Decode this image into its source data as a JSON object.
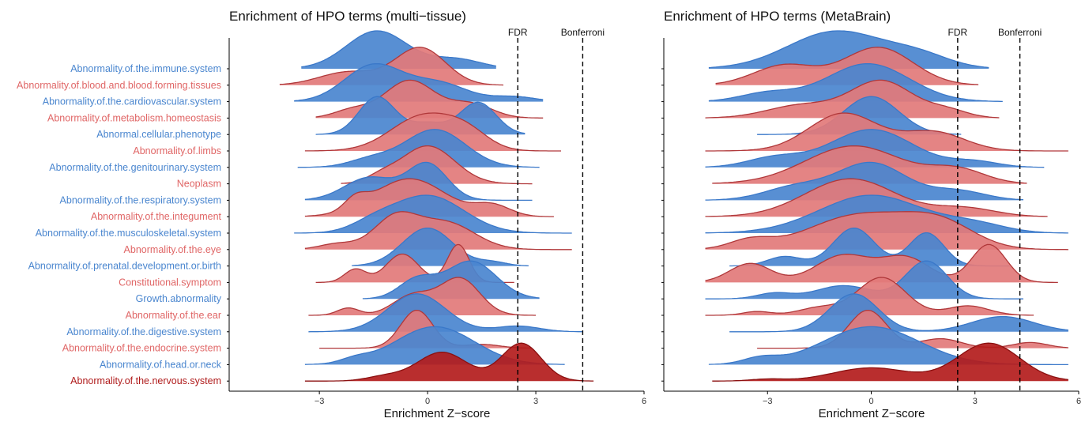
{
  "chart_data": [
    {
      "type": "ridgeline",
      "title": "Enrichment of HPO terms (multi−tissue)",
      "xlabel": "Enrichment Z−score",
      "xlim": [
        -5.5,
        6
      ],
      "xticks": [
        "−3",
        "0",
        "3",
        "6"
      ],
      "reference_lines": [
        {
          "label": "FDR",
          "x": 2.5
        },
        {
          "label": "Bonferroni",
          "x": 4.3
        }
      ],
      "series": [
        {
          "name": "Abnormality.of.the.immune.system",
          "group": "blue",
          "range": [
            -3.5,
            1.9
          ],
          "peaks": [
            [
              -1.4,
              1.0,
              0.85
            ],
            [
              0.8,
              0.25,
              0.7
            ]
          ]
        },
        {
          "name": "Abnormality.of.blood.and.blood.forming.tissues",
          "group": "red",
          "range": [
            -4.1,
            2.1
          ],
          "peaks": [
            [
              -0.2,
              0.85,
              0.7
            ],
            [
              -2.2,
              0.3,
              0.8
            ]
          ]
        },
        {
          "name": "Abnormality.of.the.cardiovascular.system",
          "group": "blue",
          "range": [
            -3.7,
            3.2
          ],
          "peaks": [
            [
              -1.5,
              0.9,
              0.8
            ],
            [
              0.3,
              0.45,
              0.8
            ],
            [
              2.4,
              0.12,
              0.6
            ]
          ]
        },
        {
          "name": "Abnormality.of.metabolism.homeostasis",
          "group": "red",
          "range": [
            -3.1,
            3.2
          ],
          "peaks": [
            [
              -0.5,
              0.95,
              0.7
            ],
            [
              1.2,
              0.35,
              0.6
            ],
            [
              -2.1,
              0.2,
              0.5
            ]
          ]
        },
        {
          "name": "Abnormal.cellular.phenotype",
          "group": "blue",
          "range": [
            -3.1,
            2.7
          ],
          "peaks": [
            [
              -1.4,
              1.0,
              0.5
            ],
            [
              1.4,
              0.85,
              0.5
            ],
            [
              0.0,
              0.3,
              0.5
            ]
          ]
        },
        {
          "name": "Abnormality.of.limbs",
          "group": "red",
          "range": [
            -3.4,
            3.7
          ],
          "peaks": [
            [
              -0.1,
              1.0,
              0.9
            ],
            [
              1.1,
              0.4,
              0.6
            ]
          ]
        },
        {
          "name": "Abnormality.of.the.genitourinary.system",
          "group": "blue",
          "range": [
            -3.6,
            3.1
          ],
          "peaks": [
            [
              0.2,
              1.0,
              0.85
            ],
            [
              -1.6,
              0.2,
              0.6
            ]
          ]
        },
        {
          "name": "Neoplasm",
          "group": "red",
          "range": [
            -2.4,
            2.9
          ],
          "peaks": [
            [
              0.0,
              1.0,
              0.75
            ],
            [
              -1.3,
              0.15,
              0.4
            ]
          ]
        },
        {
          "name": "Abnormality.of.the.respiratory.system",
          "group": "blue",
          "range": [
            -3.4,
            2.9
          ],
          "peaks": [
            [
              0.0,
              0.95,
              0.55
            ],
            [
              -1.6,
              0.6,
              0.7
            ]
          ]
        },
        {
          "name": "Abnormality.of.the.integument",
          "group": "red",
          "range": [
            -3.4,
            3.5
          ],
          "peaks": [
            [
              -0.5,
              0.7,
              1.0
            ],
            [
              -2.0,
              0.2,
              0.3
            ],
            [
              1.8,
              0.2,
              0.5
            ]
          ]
        },
        {
          "name": "Abnormality.of.the.musculoskeletal.system",
          "group": "blue",
          "range": [
            -3.7,
            4.0
          ],
          "peaks": [
            [
              0.0,
              0.95,
              1.0
            ],
            [
              -1.5,
              0.2,
              0.6
            ]
          ]
        },
        {
          "name": "Abnormality.of.the.eye",
          "group": "red",
          "range": [
            -3.4,
            4.0
          ],
          "peaks": [
            [
              -0.9,
              0.8,
              0.6
            ],
            [
              0.5,
              0.7,
              0.8
            ],
            [
              -2.5,
              0.15,
              0.5
            ]
          ]
        },
        {
          "name": "Abnormality.of.prenatal.development.or.birth",
          "group": "blue",
          "range": [
            -2.1,
            2.8
          ],
          "peaks": [
            [
              0.0,
              1.0,
              0.7
            ],
            [
              1.8,
              0.1,
              0.4
            ]
          ]
        },
        {
          "name": "Constitutional.symptom",
          "group": "red",
          "range": [
            -3.1,
            2.4
          ],
          "peaks": [
            [
              0.85,
              1.0,
              0.3
            ],
            [
              -0.7,
              0.75,
              0.45
            ],
            [
              -2.0,
              0.35,
              0.3
            ]
          ]
        },
        {
          "name": "Growth.abnormality",
          "group": "blue",
          "range": [
            -1.8,
            3.1
          ],
          "peaks": [
            [
              1.2,
              1.0,
              0.7
            ],
            [
              -0.3,
              0.5,
              0.5
            ]
          ]
        },
        {
          "name": "Abnormality.of.the.ear",
          "group": "red",
          "range": [
            -3.3,
            3.0
          ],
          "peaks": [
            [
              0.9,
              1.0,
              0.55
            ],
            [
              -0.4,
              0.55,
              0.55
            ],
            [
              -2.2,
              0.2,
              0.3
            ]
          ]
        },
        {
          "name": "Abnormality.of.the.digestive.system",
          "group": "blue",
          "range": [
            -3.3,
            4.3
          ],
          "peaks": [
            [
              -0.3,
              1.0,
              0.8
            ],
            [
              2.5,
              0.15,
              0.6
            ]
          ]
        },
        {
          "name": "Abnormality.of.the.endocrine.system",
          "group": "red",
          "range": [
            -3.0,
            2.9
          ],
          "peaks": [
            [
              -0.3,
              1.0,
              0.45
            ],
            [
              1.5,
              0.1,
              0.5
            ]
          ]
        },
        {
          "name": "Abnormality.of.head.or.neck",
          "group": "blue",
          "range": [
            -3.4,
            3.8
          ],
          "peaks": [
            [
              0.2,
              0.9,
              1.1
            ],
            [
              -2.0,
              0.1,
              0.4
            ]
          ]
        },
        {
          "name": "Abnormality.of.the.nervous.system",
          "group": "darkred",
          "range": [
            -3.4,
            4.6
          ],
          "peaks": [
            [
              0.4,
              0.65,
              0.7
            ],
            [
              2.6,
              0.85,
              0.55
            ],
            [
              -1.2,
              0.1,
              0.5
            ]
          ]
        }
      ]
    },
    {
      "type": "ridgeline",
      "title": "Enrichment of HPO terms (MetaBrain)",
      "xlabel": "Enrichment Z−score",
      "xlim": [
        -6,
        6
      ],
      "xticks": [
        "−3",
        "0",
        "3",
        "6"
      ],
      "reference_lines": [
        {
          "label": "FDR",
          "x": 2.5
        },
        {
          "label": "Bonferroni",
          "x": 4.3
        }
      ],
      "series": [
        {
          "name": "Abnormality.of.the.immune.system",
          "group": "blue",
          "range": [
            -4.7,
            3.4
          ],
          "peaks": [
            [
              -1.0,
              1.0,
              1.4
            ],
            [
              1.4,
              0.3,
              0.9
            ]
          ]
        },
        {
          "name": "Abnormality.of.blood.and.blood.forming.tissues",
          "group": "red",
          "range": [
            -4.5,
            3.1
          ],
          "peaks": [
            [
              0.2,
              0.85,
              1.0
            ],
            [
              -2.5,
              0.45,
              0.9
            ]
          ]
        },
        {
          "name": "Abnormality.of.the.cardiovascular.system",
          "group": "blue",
          "range": [
            -4.7,
            3.8
          ],
          "peaks": [
            [
              -0.1,
              0.9,
              1.2
            ],
            [
              -3.0,
              0.2,
              0.8
            ]
          ]
        },
        {
          "name": "Abnormality.of.metabolism.homeostasis",
          "group": "red",
          "range": [
            -4.8,
            3.7
          ],
          "peaks": [
            [
              0.3,
              1.0,
              0.9
            ],
            [
              -2.0,
              0.35,
              1.0
            ],
            [
              2.2,
              0.2,
              0.6
            ]
          ]
        },
        {
          "name": "Abnormal.cellular.phenotype",
          "group": "blue",
          "range": [
            -3.3,
            2.6
          ],
          "peaks": [
            [
              0.0,
              1.0,
              0.8
            ]
          ]
        },
        {
          "name": "Abnormality.of.limbs",
          "group": "red",
          "range": [
            -4.8,
            5.7
          ],
          "peaks": [
            [
              -0.8,
              1.0,
              1.0
            ],
            [
              1.8,
              0.5,
              0.9
            ]
          ]
        },
        {
          "name": "Abnormality.of.the.genitourinary.system",
          "group": "blue",
          "range": [
            -4.8,
            5.0
          ],
          "peaks": [
            [
              0.0,
              1.0,
              1.2
            ],
            [
              -2.8,
              0.25,
              0.8
            ],
            [
              3.0,
              0.15,
              0.7
            ]
          ]
        },
        {
          "name": "Neoplasm",
          "group": "red",
          "range": [
            -4.6,
            4.5
          ],
          "peaks": [
            [
              -0.5,
              0.85,
              1.4
            ],
            [
              2.5,
              0.3,
              0.8
            ]
          ]
        },
        {
          "name": "Abnormality.of.the.respiratory.system",
          "group": "blue",
          "range": [
            -4.8,
            4.4
          ],
          "peaks": [
            [
              0.0,
              1.0,
              1.0
            ],
            [
              -2.2,
              0.35,
              0.9
            ],
            [
              2.5,
              0.25,
              0.8
            ]
          ]
        },
        {
          "name": "Abnormality.of.the.integument",
          "group": "red",
          "range": [
            -4.8,
            5.1
          ],
          "peaks": [
            [
              -0.6,
              0.9,
              1.3
            ],
            [
              2.7,
              0.2,
              0.9
            ]
          ]
        },
        {
          "name": "Abnormality.of.the.musculoskeletal.system",
          "group": "blue",
          "range": [
            -4.8,
            5.7
          ],
          "peaks": [
            [
              0.0,
              0.95,
              1.5
            ],
            [
              3.0,
              0.2,
              0.9
            ]
          ]
        },
        {
          "name": "Abnormality.of.the.eye",
          "group": "red",
          "range": [
            -4.8,
            5.7
          ],
          "peaks": [
            [
              -0.3,
              0.6,
              1.5
            ],
            [
              2.0,
              0.4,
              1.0
            ],
            [
              -3.5,
              0.15,
              0.6
            ]
          ]
        },
        {
          "name": "Abnormality.of.prenatal.development.or.birth",
          "group": "blue",
          "range": [
            -4.1,
            4.0
          ],
          "peaks": [
            [
              -0.5,
              0.8,
              0.6
            ],
            [
              1.6,
              0.7,
              0.5
            ],
            [
              -2.5,
              0.2,
              0.5
            ]
          ]
        },
        {
          "name": "Constitutional.symptom",
          "group": "red",
          "range": [
            -4.8,
            5.4
          ],
          "peaks": [
            [
              -3.5,
              0.35,
              0.6
            ],
            [
              -0.8,
              0.5,
              0.8
            ],
            [
              1.0,
              0.45,
              0.7
            ],
            [
              3.4,
              0.7,
              0.5
            ]
          ]
        },
        {
          "name": "Growth.abnormality",
          "group": "blue",
          "range": [
            -4.8,
            4.4
          ],
          "peaks": [
            [
              1.6,
              1.0,
              0.6
            ],
            [
              -0.8,
              0.35,
              0.8
            ],
            [
              -2.8,
              0.15,
              0.5
            ]
          ]
        },
        {
          "name": "Abnormality.of.the.ear",
          "group": "red",
          "range": [
            -4.8,
            4.7
          ],
          "peaks": [
            [
              0.3,
              1.0,
              0.7
            ],
            [
              -1.5,
              0.2,
              0.6
            ],
            [
              -3.3,
              0.1,
              0.4
            ],
            [
              2.8,
              0.25,
              0.6
            ]
          ]
        },
        {
          "name": "Abnormality.of.the.digestive.system",
          "group": "blue",
          "range": [
            -4.1,
            5.7
          ],
          "peaks": [
            [
              -0.5,
              1.0,
              0.7
            ],
            [
              3.8,
              0.4,
              0.9
            ]
          ]
        },
        {
          "name": "Abnormality.of.the.endocrine.system",
          "group": "red",
          "range": [
            -3.3,
            5.7
          ],
          "peaks": [
            [
              -0.1,
              1.0,
              0.55
            ],
            [
              2.0,
              0.25,
              0.6
            ],
            [
              4.6,
              0.15,
              0.5
            ]
          ]
        },
        {
          "name": "Abnormality.of.head.or.neck",
          "group": "blue",
          "range": [
            -4.7,
            5.7
          ],
          "peaks": [
            [
              0.0,
              0.95,
              1.4
            ],
            [
              -3.2,
              0.15,
              0.5
            ]
          ]
        },
        {
          "name": "Abnormality.of.the.nervous.system",
          "group": "darkred",
          "range": [
            -4.6,
            5.7
          ],
          "peaks": [
            [
              0.0,
              0.35,
              1.1
            ],
            [
              3.4,
              1.0,
              0.9
            ],
            [
              -3.0,
              0.05,
              0.5
            ]
          ]
        }
      ]
    }
  ],
  "colors": {
    "blue_fill": "#4a86cf",
    "blue_line": "#3a78c9",
    "blue_label": "#4a86cf",
    "red_fill": "#e27a7a",
    "red_line": "#b0383a",
    "red_label": "#e06666",
    "darkred_fill": "#b31c1c",
    "darkred_line": "#8b1010",
    "darkred_label": "#b01c1c"
  }
}
